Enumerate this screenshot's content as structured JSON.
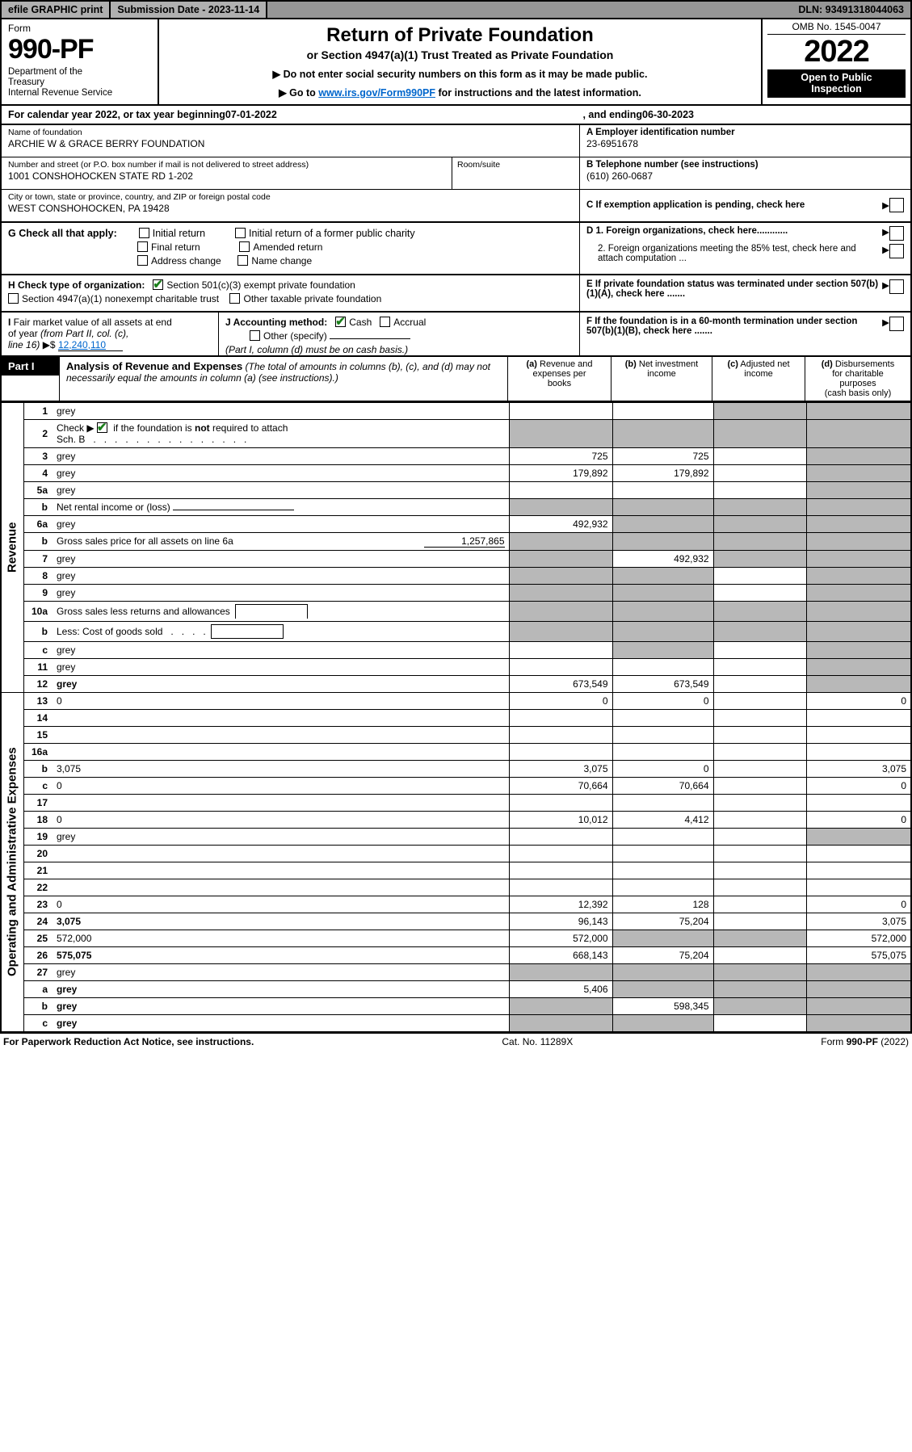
{
  "topbar": {
    "efile": "efile GRAPHIC print",
    "submission_label": "Submission Date - 2023-11-14",
    "dln": "DLN: 93491318044063"
  },
  "header": {
    "form_word": "Form",
    "form_number": "990-PF",
    "dept": "Department of the Treasury\nInternal Revenue Service",
    "title": "Return of Private Foundation",
    "subtitle": "or Section 4947(a)(1) Trust Treated as Private Foundation",
    "instr1": "▶ Do not enter social security numbers on this form as it may be made public.",
    "instr2_pre": "▶ Go to ",
    "instr2_link": "www.irs.gov/Form990PF",
    "instr2_post": " for instructions and the latest information.",
    "omb": "OMB No. 1545-0047",
    "year": "2022",
    "inspect": "Open to Public Inspection"
  },
  "calendar": {
    "prefix": "For calendar year 2022, or tax year beginning ",
    "begin": "07-01-2022",
    "middle": ", and ending ",
    "end": "06-30-2023"
  },
  "entity": {
    "name_label": "Name of foundation",
    "name": "ARCHIE W & GRACE BERRY FOUNDATION",
    "addr_label": "Number and street (or P.O. box number if mail is not delivered to street address)",
    "addr": "1001 CONSHOHOCKEN STATE RD 1-202",
    "room_label": "Room/suite",
    "city_label": "City or town, state or province, country, and ZIP or foreign postal code",
    "city": "WEST CONSHOHOCKEN, PA  19428",
    "a_label": "A Employer identification number",
    "a_val": "23-6951678",
    "b_label": "B Telephone number (see instructions)",
    "b_val": "(610) 260-0687",
    "c_label": "C If exemption application is pending, check here",
    "d1": "D 1. Foreign organizations, check here............",
    "d2": "2. Foreign organizations meeting the 85% test, check here and attach computation ...",
    "e": "E  If private foundation status was terminated under section 507(b)(1)(A), check here .......",
    "f": "F  If the foundation is in a 60-month termination under section 507(b)(1)(B), check here .......",
    "g_label": "G Check all that apply:",
    "g_opts": [
      "Initial return",
      "Initial return of a former public charity",
      "Final return",
      "Amended return",
      "Address change",
      "Name change"
    ],
    "h_label": "H Check type of organization:",
    "h_opt1": "Section 501(c)(3) exempt private foundation",
    "h_opt2": "Section 4947(a)(1) nonexempt charitable trust",
    "h_opt3": "Other taxable private foundation",
    "i_label": "I Fair market value of all assets at end of year (from Part II, col. (c), line 16) ▶$ ",
    "i_val": "12,240,110",
    "j_label": "J Accounting method:",
    "j_cash": "Cash",
    "j_accrual": "Accrual",
    "j_other": "Other (specify)",
    "j_note": "(Part I, column (d) must be on cash basis.)"
  },
  "part1": {
    "label": "Part I",
    "title": "Analysis of Revenue and Expenses",
    "title_note": " (The total of amounts in columns (b), (c), and (d) may not necessarily equal the amounts in column (a) (see instructions).)",
    "col_a": "(a) Revenue and expenses per books",
    "col_b": "(b) Net investment income",
    "col_c": "(c) Adjusted net income",
    "col_d": "(d) Disbursements for charitable purposes (cash basis only)",
    "revenue_label": "Revenue",
    "expenses_label": "Operating and Administrative Expenses"
  },
  "rows": {
    "r1": {
      "n": "1",
      "d": "grey",
      "a": "",
      "b": "",
      "c": "grey"
    },
    "r2": {
      "n": "2",
      "d": "grey",
      "a": "grey",
      "b": "grey",
      "c": "grey"
    },
    "r3": {
      "n": "3",
      "d": "grey",
      "a": "725",
      "b": "725",
      "c": ""
    },
    "r4": {
      "n": "4",
      "d": "grey",
      "a": "179,892",
      "b": "179,892",
      "c": ""
    },
    "r5a": {
      "n": "5a",
      "d": "grey",
      "a": "",
      "b": "",
      "c": ""
    },
    "r5b": {
      "n": "b",
      "d": "grey",
      "a": "grey",
      "b": "grey",
      "c": "grey"
    },
    "r6a": {
      "n": "6a",
      "d": "grey",
      "a": "492,932",
      "b": "grey",
      "c": "grey"
    },
    "r6b": {
      "n": "b",
      "d": "grey",
      "a": "grey",
      "b": "grey",
      "c": "grey"
    },
    "r7": {
      "n": "7",
      "d": "grey",
      "a": "grey",
      "b": "492,932",
      "c": "grey"
    },
    "r8": {
      "n": "8",
      "d": "grey",
      "a": "grey",
      "b": "grey",
      "c": ""
    },
    "r9": {
      "n": "9",
      "d": "grey",
      "a": "grey",
      "b": "grey",
      "c": ""
    },
    "r10a": {
      "n": "10a",
      "d": "grey",
      "a": "grey",
      "b": "grey",
      "c": "grey"
    },
    "r10b": {
      "n": "b",
      "d": "grey",
      "a": "grey",
      "b": "grey",
      "c": "grey"
    },
    "r10c": {
      "n": "c",
      "d": "grey",
      "a": "",
      "b": "grey",
      "c": ""
    },
    "r11": {
      "n": "11",
      "d": "grey",
      "a": "",
      "b": "",
      "c": ""
    },
    "r12": {
      "n": "12",
      "d": "grey",
      "a": "673,549",
      "b": "673,549",
      "c": "",
      "bold": true
    },
    "r13": {
      "n": "13",
      "d": "0",
      "a": "0",
      "b": "0",
      "c": ""
    },
    "r14": {
      "n": "14",
      "d": "",
      "a": "",
      "b": "",
      "c": ""
    },
    "r15": {
      "n": "15",
      "d": "",
      "a": "",
      "b": "",
      "c": ""
    },
    "r16a": {
      "n": "16a",
      "d": "",
      "a": "",
      "b": "",
      "c": ""
    },
    "r16b": {
      "n": "b",
      "d": "3,075",
      "a": "3,075",
      "b": "0",
      "c": ""
    },
    "r16c": {
      "n": "c",
      "d": "0",
      "a": "70,664",
      "b": "70,664",
      "c": ""
    },
    "r17": {
      "n": "17",
      "d": "",
      "a": "",
      "b": "",
      "c": ""
    },
    "r18": {
      "n": "18",
      "d": "0",
      "a": "10,012",
      "b": "4,412",
      "c": ""
    },
    "r19": {
      "n": "19",
      "d": "grey",
      "a": "",
      "b": "",
      "c": ""
    },
    "r20": {
      "n": "20",
      "d": "",
      "a": "",
      "b": "",
      "c": ""
    },
    "r21": {
      "n": "21",
      "d": "",
      "a": "",
      "b": "",
      "c": ""
    },
    "r22": {
      "n": "22",
      "d": "",
      "a": "",
      "b": "",
      "c": ""
    },
    "r23": {
      "n": "23",
      "d": "0",
      "a": "12,392",
      "b": "128",
      "c": ""
    },
    "r24": {
      "n": "24",
      "d": "3,075",
      "a": "96,143",
      "b": "75,204",
      "c": "",
      "bold": true
    },
    "r25": {
      "n": "25",
      "d": "572,000",
      "a": "572,000",
      "b": "grey",
      "c": "grey"
    },
    "r26": {
      "n": "26",
      "d": "575,075",
      "a": "668,143",
      "b": "75,204",
      "c": "",
      "bold": true
    },
    "r27": {
      "n": "27",
      "d": "grey",
      "a": "grey",
      "b": "grey",
      "c": "grey"
    },
    "r27a": {
      "n": "a",
      "d": "grey",
      "a": "5,406",
      "b": "grey",
      "c": "grey",
      "bold": true
    },
    "r27b": {
      "n": "b",
      "d": "grey",
      "a": "grey",
      "b": "598,345",
      "c": "grey",
      "bold": true
    },
    "r27c": {
      "n": "c",
      "d": "grey",
      "a": "grey",
      "b": "grey",
      "c": "",
      "bold": true
    }
  },
  "footer": {
    "left": "For Paperwork Reduction Act Notice, see instructions.",
    "mid": "Cat. No. 11289X",
    "right": "Form 990-PF (2022)"
  },
  "colors": {
    "grey_cell": "#b8b8b8",
    "link": "#0066cc",
    "check_green": "#1a7f1a"
  }
}
